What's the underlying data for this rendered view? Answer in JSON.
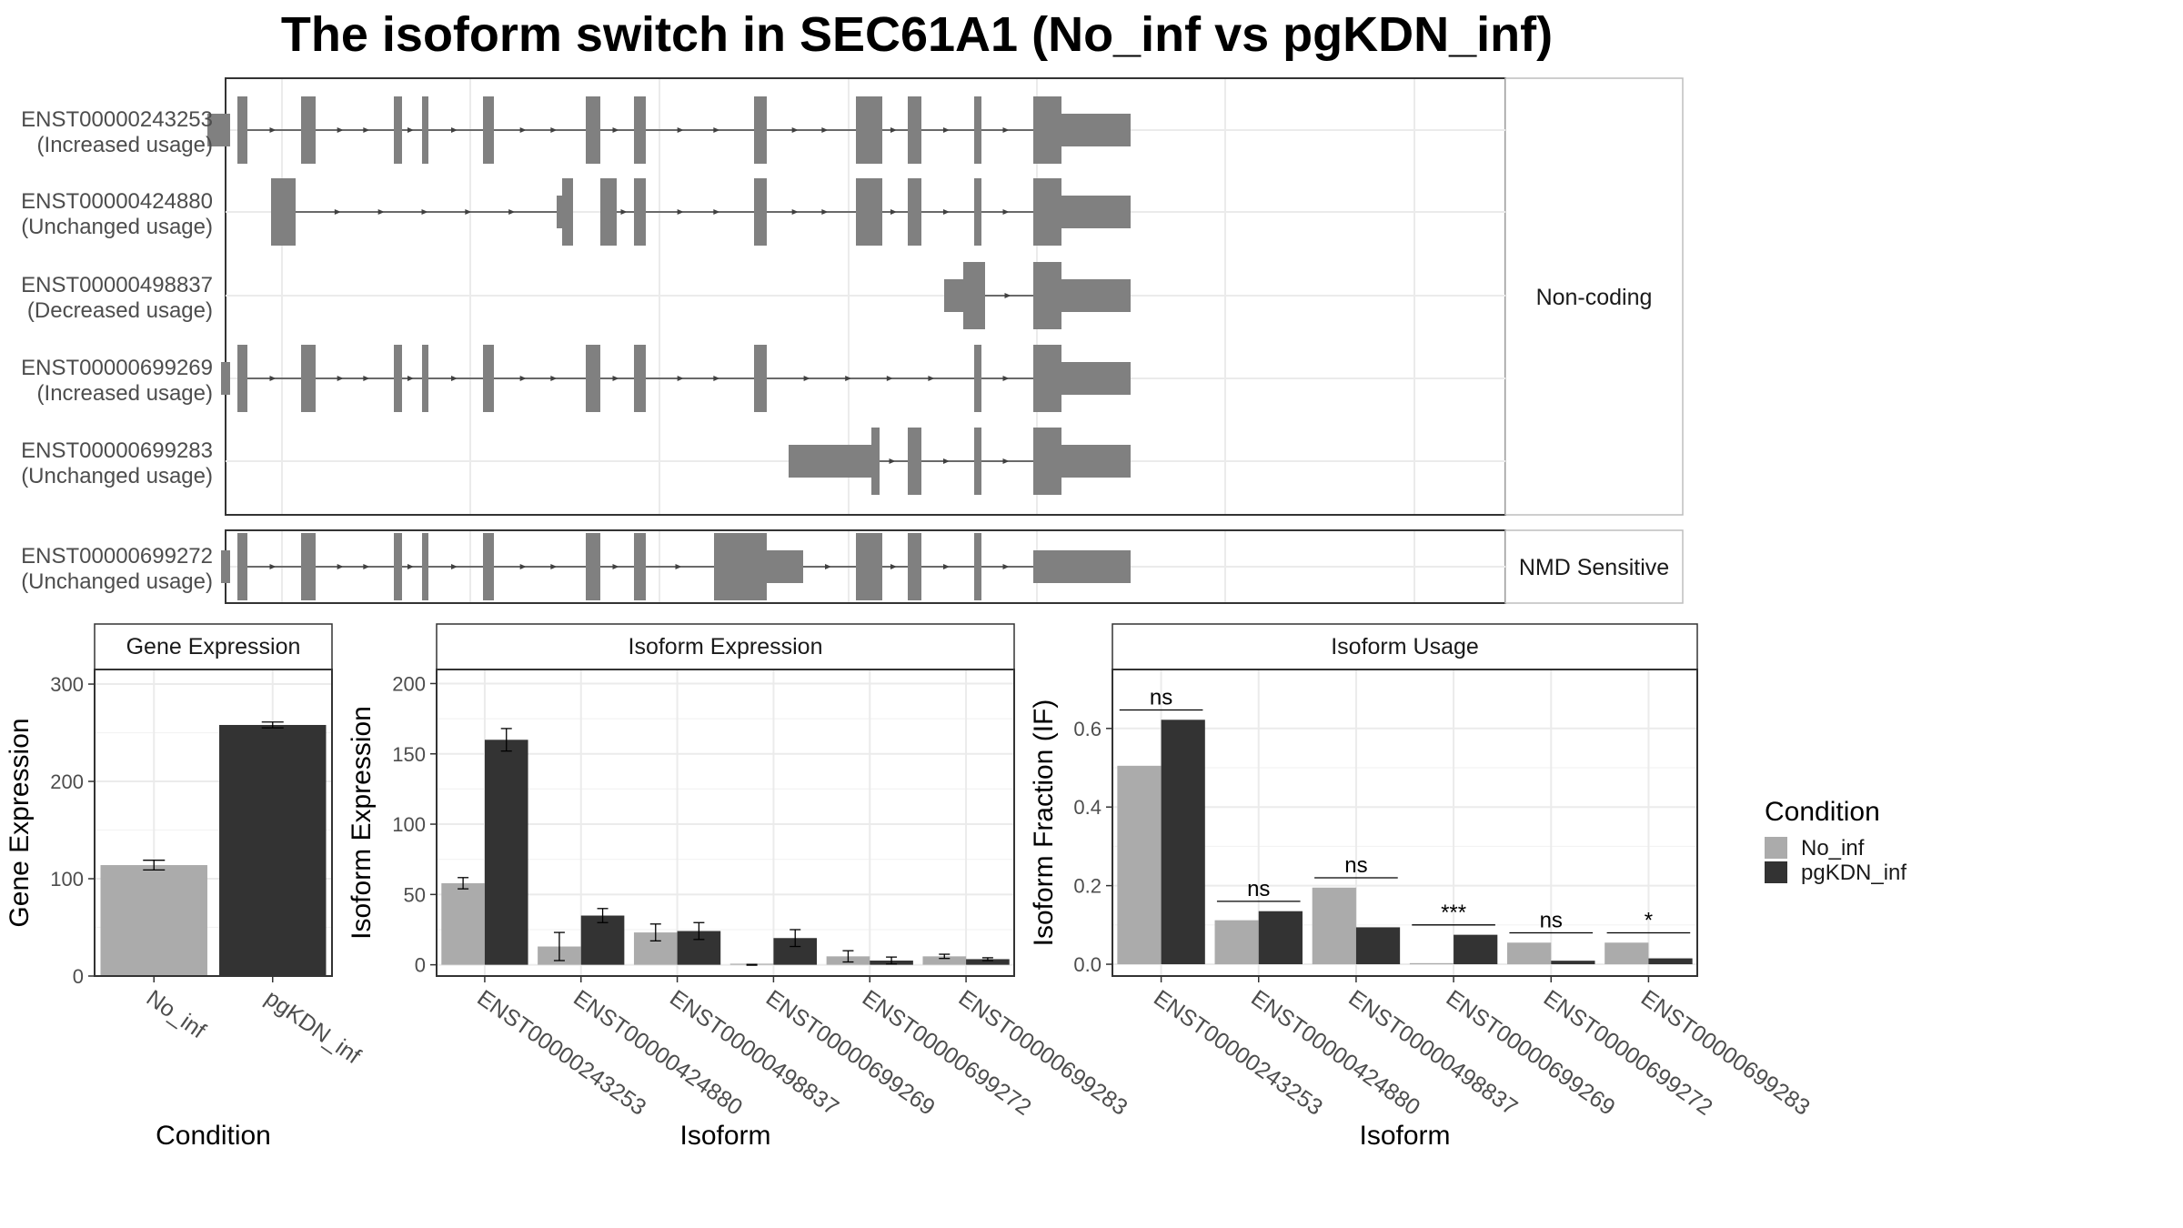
{
  "title": "The isoform switch in SEC61A1 (No_inf vs pgKDN_inf)",
  "colors": {
    "No_inf": "#ababab",
    "pgKDN_inf": "#333333",
    "exon": "#808080",
    "intron": "#404040",
    "grid": "#ebebeb",
    "panel_border": "#333333",
    "strip_border": "#bdbdbd"
  },
  "chart_data": [
    {
      "type": "gene_structure",
      "facets": [
        "Non-coding",
        "NMD Sensitive"
      ],
      "transcripts": [
        {
          "id": "ENST00000243253",
          "usage": "(Increased usage)",
          "facet": "Non-coding",
          "thick": [
            [
              261,
              272
            ],
            [
              331,
              347
            ],
            [
              433,
              442
            ],
            [
              464,
              471
            ],
            [
              531,
              543
            ],
            [
              644,
              660
            ],
            [
              697,
              710
            ],
            [
              829,
              843
            ],
            [
              941,
              970
            ],
            [
              998,
              1013
            ],
            [
              1071,
              1079
            ],
            [
              1136,
              1167
            ]
          ],
          "thin": [
            [
              228,
              253
            ],
            [
              1167,
              1243
            ]
          ],
          "introns": [
            [
              272,
              331
            ],
            [
              347,
              433
            ],
            [
              442,
              464
            ],
            [
              471,
              531
            ],
            [
              543,
              644
            ],
            [
              660,
              697
            ],
            [
              710,
              829
            ],
            [
              843,
              941
            ],
            [
              970,
              998
            ],
            [
              1013,
              1071
            ],
            [
              1079,
              1136
            ]
          ]
        },
        {
          "id": "ENST00000424880",
          "usage": "(Unchanged usage)",
          "facet": "Non-coding",
          "thick": [
            [
              298,
              325
            ],
            [
              618,
              630
            ],
            [
              660,
              678
            ],
            [
              697,
              710
            ],
            [
              829,
              843
            ],
            [
              941,
              970
            ],
            [
              998,
              1013
            ],
            [
              1071,
              1079
            ],
            [
              1136,
              1167
            ]
          ],
          "thin": [
            [
              612,
              618
            ],
            [
              1167,
              1243
            ]
          ],
          "introns": [
            [
              325,
              612
            ],
            [
              678,
              697
            ],
            [
              710,
              829
            ],
            [
              843,
              941
            ],
            [
              970,
              998
            ],
            [
              1013,
              1071
            ],
            [
              1079,
              1136
            ]
          ]
        },
        {
          "id": "ENST00000498837",
          "usage": "(Decreased usage)",
          "facet": "Non-coding",
          "thick": [
            [
              1059,
              1083
            ],
            [
              1071,
              1079
            ],
            [
              1136,
              1167
            ]
          ],
          "thin": [
            [
              1038,
              1059
            ],
            [
              1167,
              1243
            ]
          ],
          "introns": [
            [
              1083,
              1136
            ]
          ]
        },
        {
          "id": "ENST00000699269",
          "usage": "(Increased usage)",
          "facet": "Non-coding",
          "thick": [
            [
              261,
              272
            ],
            [
              331,
              347
            ],
            [
              433,
              442
            ],
            [
              464,
              471
            ],
            [
              531,
              543
            ],
            [
              644,
              660
            ],
            [
              697,
              710
            ],
            [
              829,
              843
            ],
            [
              1071,
              1079
            ],
            [
              1136,
              1167
            ]
          ],
          "thin": [
            [
              243,
              253
            ],
            [
              1167,
              1243
            ]
          ],
          "introns": [
            [
              272,
              331
            ],
            [
              347,
              433
            ],
            [
              442,
              464
            ],
            [
              471,
              531
            ],
            [
              543,
              644
            ],
            [
              660,
              697
            ],
            [
              710,
              829
            ],
            [
              843,
              1071
            ],
            [
              1079,
              1136
            ]
          ]
        },
        {
          "id": "ENST00000699283",
          "usage": "(Unchanged usage)",
          "facet": "Non-coding",
          "thick": [
            [
              958,
              967
            ],
            [
              998,
              1013
            ],
            [
              1071,
              1079
            ],
            [
              1136,
              1167
            ]
          ],
          "thin": [
            [
              867,
              958
            ],
            [
              1167,
              1243
            ]
          ],
          "introns": [
            [
              967,
              998
            ],
            [
              1013,
              1071
            ],
            [
              1079,
              1136
            ]
          ]
        },
        {
          "id": "ENST00000699272",
          "usage": "(Unchanged usage)",
          "facet": "NMD Sensitive",
          "thick": [
            [
              261,
              272
            ],
            [
              331,
              347
            ],
            [
              433,
              442
            ],
            [
              464,
              471
            ],
            [
              531,
              543
            ],
            [
              644,
              660
            ],
            [
              697,
              710
            ],
            [
              785,
              829
            ],
            [
              829,
              843
            ],
            [
              941,
              970
            ],
            [
              998,
              1013
            ],
            [
              1071,
              1079
            ]
          ],
          "thin": [
            [
              243,
              253
            ],
            [
              829,
              883
            ],
            [
              1136,
              1243
            ]
          ],
          "introns": [
            [
              272,
              331
            ],
            [
              347,
              433
            ],
            [
              442,
              464
            ],
            [
              471,
              531
            ],
            [
              543,
              644
            ],
            [
              660,
              697
            ],
            [
              710,
              785
            ],
            [
              883,
              941
            ],
            [
              970,
              998
            ],
            [
              1013,
              1071
            ],
            [
              1079,
              1136
            ]
          ]
        }
      ]
    },
    {
      "type": "bar",
      "title": "Gene Expression",
      "xlabel": "Condition",
      "ylabel": "Gene Expression",
      "categories": [
        "No_inf",
        "pgKDN_inf"
      ],
      "values": [
        114,
        258
      ],
      "errors": [
        5,
        3
      ],
      "ylim": [
        0,
        315
      ],
      "yticks": [
        0,
        100,
        200,
        300
      ]
    },
    {
      "type": "bar",
      "title": "Isoform Expression",
      "xlabel": "Isoform",
      "ylabel": "Isoform Expression",
      "categories": [
        "ENST00000243253",
        "ENST00000424880",
        "ENST00000498837",
        "ENST00000699269",
        "ENST00000699272",
        "ENST00000699283"
      ],
      "series": [
        {
          "name": "No_inf",
          "values": [
            58,
            13,
            23,
            0,
            6,
            6
          ],
          "errors": [
            4,
            10,
            6,
            0.3,
            4,
            1.5
          ]
        },
        {
          "name": "pgKDN_inf",
          "values": [
            160,
            35,
            24,
            19,
            3,
            4
          ],
          "errors": [
            8,
            5,
            6,
            6,
            2.5,
            1
          ]
        }
      ],
      "ylim": [
        -8,
        210
      ],
      "yticks": [
        0,
        50,
        100,
        150,
        200
      ]
    },
    {
      "type": "bar",
      "title": "Isoform Usage",
      "xlabel": "Isoform",
      "ylabel": "Isoform Fraction (IF)",
      "categories": [
        "ENST00000243253",
        "ENST00000424880",
        "ENST00000498837",
        "ENST00000699269",
        "ENST00000699272",
        "ENST00000699283"
      ],
      "series": [
        {
          "name": "No_inf",
          "values": [
            0.505,
            0.112,
            0.195,
            0.0,
            0.055,
            0.055
          ]
        },
        {
          "name": "pgKDN_inf",
          "values": [
            0.622,
            0.135,
            0.094,
            0.075,
            0.009,
            0.015
          ]
        }
      ],
      "significance": [
        "ns",
        "ns",
        "ns",
        "***",
        "ns",
        "*"
      ],
      "ylim": [
        -0.03,
        0.75
      ],
      "yticks": [
        0.0,
        0.2,
        0.4,
        0.6
      ],
      "ytick_labels": [
        "0.0",
        "0.2",
        "0.4",
        "0.6"
      ]
    }
  ],
  "legend": {
    "title": "Condition",
    "items": [
      "No_inf",
      "pgKDN_inf"
    ],
    "position": "right"
  }
}
